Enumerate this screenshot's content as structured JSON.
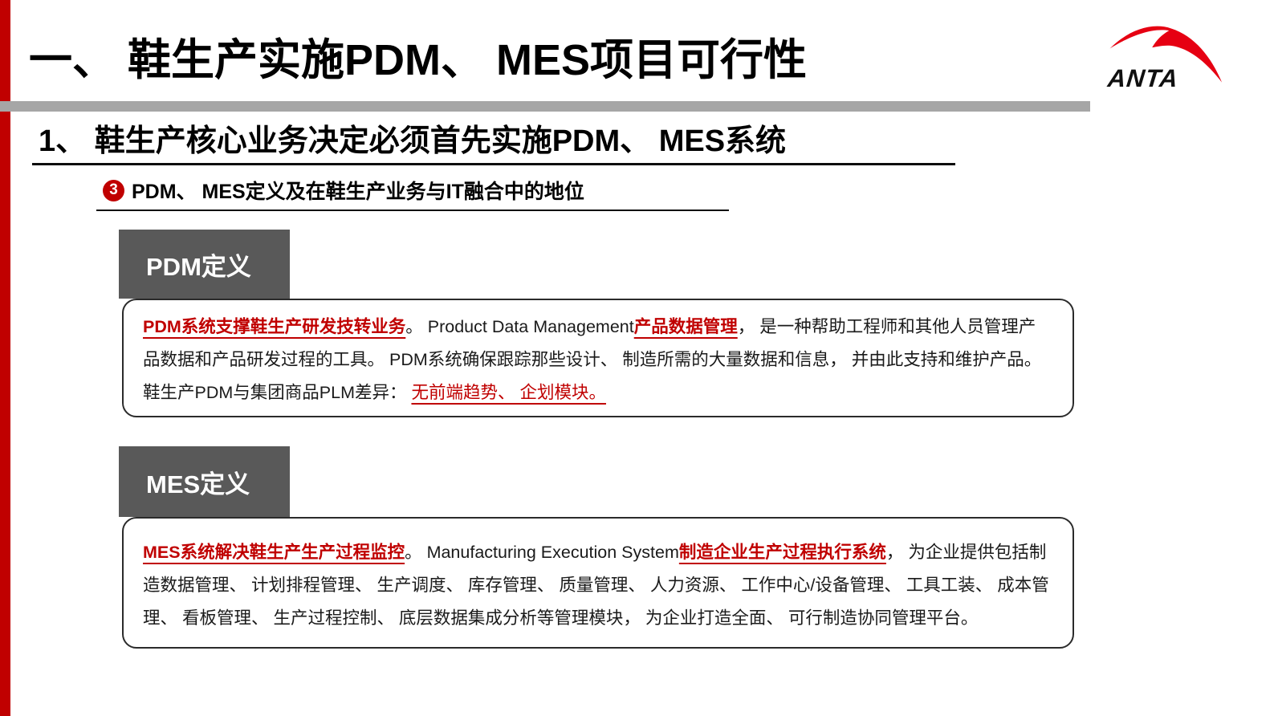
{
  "colors": {
    "red": "#C00000",
    "logo_red": "#E60012",
    "tab_gray": "#595959",
    "divider_gray": "#A6A6A6"
  },
  "header": {
    "title": "一、 鞋生产实施PDM、 MES项目可行性",
    "logo_text": "ANTA"
  },
  "section": {
    "heading": "1、 鞋生产核心业务决定必须首先实施PDM、 MES系统"
  },
  "topic": {
    "marker": "3",
    "label": "PDM、 MES定义及在鞋生产业务与IT融合中的地位"
  },
  "pdm": {
    "tab_label": "PDM定义",
    "segments": [
      {
        "text": "PDM系统支撑鞋生产研发技转业务",
        "style": "red-bold-underline"
      },
      {
        "text": "。 Product Data Management",
        "style": "plain"
      },
      {
        "text": "产品数据管理",
        "style": "red-bold-underline"
      },
      {
        "text": "， 是一种帮助工程师和其他人员管理产品数据和产品研发过程的工具。 PDM系统确保跟踪那些设计、 制造所需的大量数据和信息， 并由此支持和维护产品。 鞋生产PDM与集团商品PLM差异： ",
        "style": "plain"
      },
      {
        "text": "无前端趋势、 企划模块。",
        "style": "red-underline"
      }
    ]
  },
  "mes": {
    "tab_label": "MES定义",
    "segments": [
      {
        "text": "MES系统解决鞋生产生产过程监控",
        "style": "red-bold-underline"
      },
      {
        "text": "。 Manufacturing Execution System",
        "style": "plain"
      },
      {
        "text": "制造企业生产过程执行系统",
        "style": "red-bold-underline"
      },
      {
        "text": "， 为企业提供包括制造数据管理、 计划排程管理、 生产调度、 库存管理、 质量管理、 人力资源、 工作中心/设备管理、 工具工装、 成本管理、 看板管理、 生产过程控制、 底层数据集成分析等管理模块， 为企业打造全面、 可行制造协同管理平台。",
        "style": "plain"
      }
    ]
  }
}
